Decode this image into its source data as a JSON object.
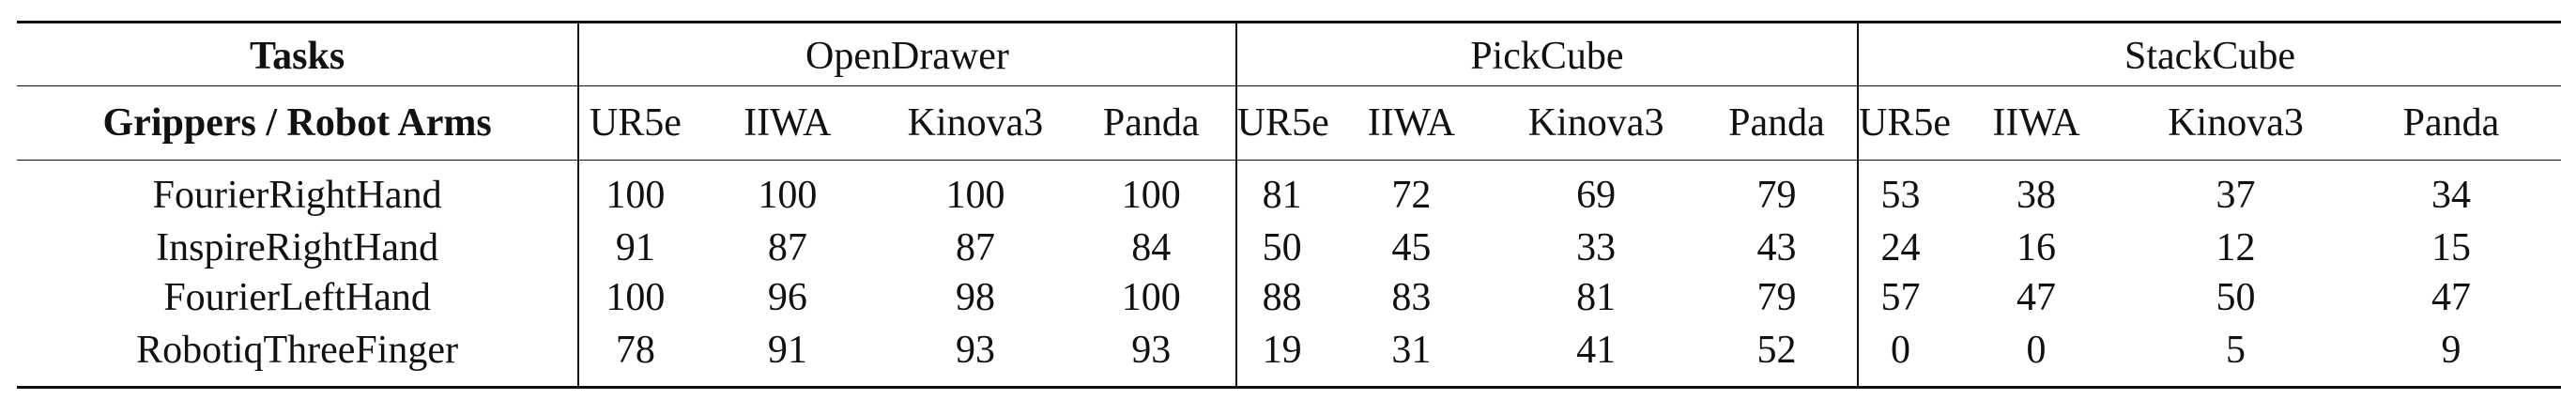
{
  "header": {
    "tasks_label": "Tasks",
    "grippers_label": "Grippers / Robot Arms",
    "task_groups": [
      "OpenDrawer",
      "PickCube",
      "StackCube"
    ],
    "arms": [
      "UR5e",
      "IIWA",
      "Kinova3",
      "Panda"
    ]
  },
  "rows": [
    {
      "gripper": "FourierRightHand",
      "values": [
        "100",
        "100",
        "100",
        "100",
        "81",
        "72",
        "69",
        "79",
        "53",
        "38",
        "37",
        "34"
      ]
    },
    {
      "gripper": "InspireRightHand",
      "values": [
        "91",
        "87",
        "87",
        "84",
        "50",
        "45",
        "33",
        "43",
        "24",
        "16",
        "12",
        "15"
      ]
    },
    {
      "gripper": "FourierLeftHand",
      "values": [
        "100",
        "96",
        "98",
        "100",
        "88",
        "83",
        "81",
        "79",
        "57",
        "47",
        "50",
        "47"
      ]
    },
    {
      "gripper": "RobotiqThreeFinger",
      "values": [
        "78",
        "91",
        "93",
        "93",
        "19",
        "31",
        "41",
        "52",
        "0",
        "0",
        "5",
        "9"
      ]
    }
  ]
}
